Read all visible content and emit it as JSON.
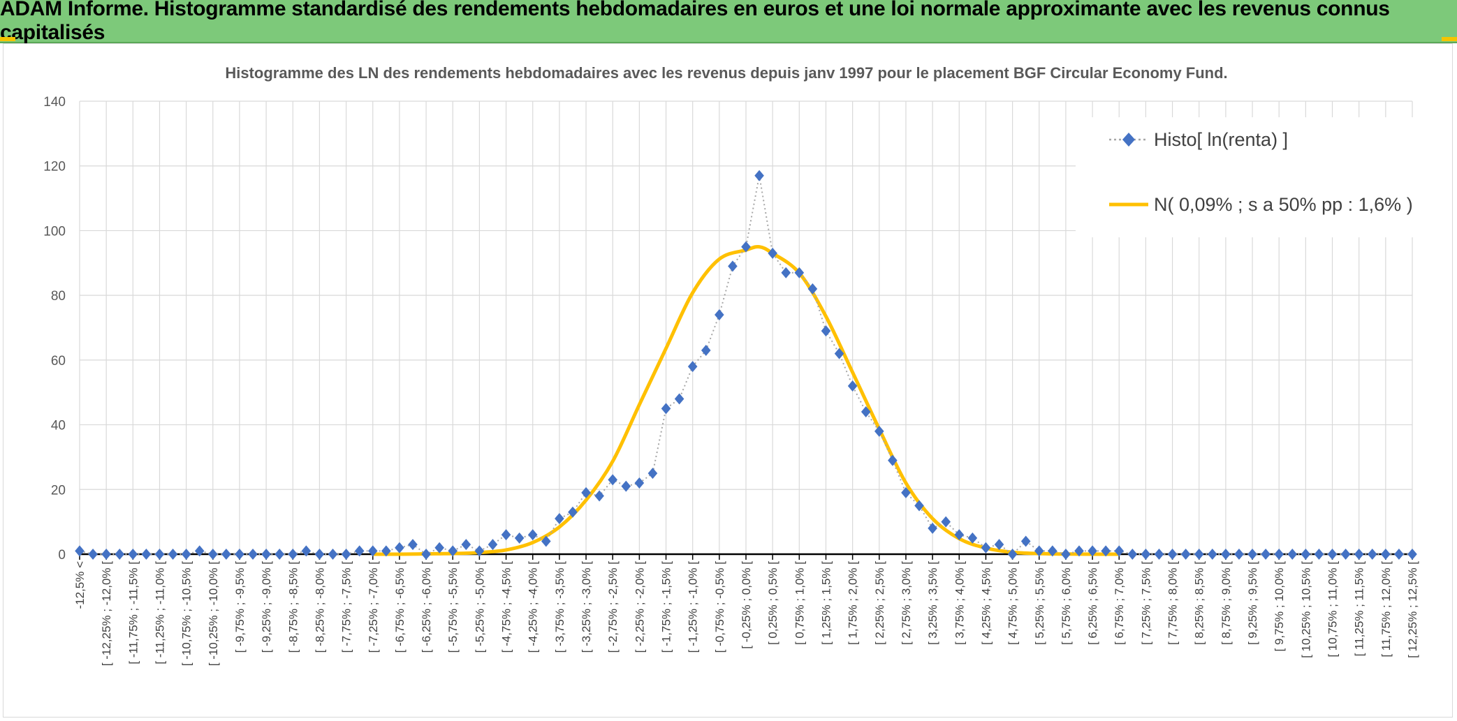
{
  "header": {
    "title": "ADAM Informe. Histogramme standardisé des rendements hebdomadaires en euros et une loi normale approximante avec les revenus connus capitalisés"
  },
  "colors": {
    "banner": "#7dc97a",
    "accent_yellow": "#f5c400",
    "series_histo": "#4472c4",
    "series_normal": "#ffc000",
    "grid": "#d9d9d9",
    "axis": "#000000"
  },
  "chart_data": {
    "type": "line",
    "title": "Histogramme des LN des rendements hebdomadaires avec les revenus depuis janv 1997 pour le placement BGF Circular Economy Fund.",
    "xlabel": "",
    "ylabel": "",
    "ylim": [
      0,
      140
    ],
    "yticks": [
      "0",
      "20",
      "40",
      "60",
      "80",
      "100",
      "120",
      "140"
    ],
    "grid": true,
    "legend_position": "top-right",
    "categories": [
      "-12,5% <",
      "[ -12,25% ; -12,0% [",
      "[ -11,75% ; -11,5% [",
      "[ -11,25% ; -11,0% [",
      "[ -10,75% ; -10,5% [",
      "[ -10,25% ; -10,0% [",
      "[ -9,75% ; -9,5% [",
      "[ -9,25% ; -9,0% [",
      "[ -8,75% ; -8,5% [",
      "[ -8,25% ; -8,0% [",
      "[ -7,75% ; -7,5% [",
      "[ -7,25% ; -7,0% [",
      "[ -6,75% ; -6,5% [",
      "[ -6,25% ; -6,0% [",
      "[ -5,75% ; -5,5% [",
      "[ -5,25% ; -5,0% [",
      "[ -4,75% ; -4,5% [",
      "[ -4,25% ; -4,0% [",
      "[ -3,75% ; -3,5% [",
      "[ -3,25% ; -3,0% [",
      "[ -2,75% ; -2,5% [",
      "[ -2,25% ; -2,0% [",
      "[ -1,75% ; -1,5% [",
      "[ -1,25% ; -1,0% [",
      "[ -0,75% ; -0,5% [",
      "[ -0,25% ; 0,0% [",
      "[ 0,25% ; 0,5% [",
      "[ 0,75% ; 1,0% [",
      "[ 1,25% ; 1,5% [",
      "[ 1,75% ; 2,0% [",
      "[ 2,25% ; 2,5% [",
      "[ 2,75% ; 3,0% [",
      "[ 3,25% ; 3,5% [",
      "[ 3,75% ; 4,0% [",
      "[ 4,25% ; 4,5% [",
      "[ 4,75% ; 5,0% [",
      "[ 5,25% ; 5,5% [",
      "[ 5,75% ; 6,0% [",
      "[ 6,25% ; 6,5% [",
      "[ 6,75% ; 7,0% [",
      "[ 7,25% ; 7,5% [",
      "[ 7,75% ; 8,0% [",
      "[ 8,25% ; 8,5% [",
      "[ 8,75% ; 9,0% [",
      "[ 9,25% ; 9,5% [",
      "[ 9,75% ; 10,0% [",
      "[ 10,25% ; 10,5% [",
      "[ 10,75% ; 11,0% [",
      "[ 11,25% ; 11,5% [",
      "[ 11,75% ; 12,0% [",
      "[ 12,25% ; 12,5% ["
    ],
    "series": [
      {
        "name": "Histo[ ln(renta) ]",
        "style": "dotted-diamond",
        "color": "#4472c4",
        "x": [
          -12.5,
          -12.25,
          -12.0,
          -11.75,
          -11.5,
          -11.25,
          -11.0,
          -10.75,
          -10.5,
          -10.25,
          -10.0,
          -9.75,
          -9.5,
          -9.25,
          -9.0,
          -8.75,
          -8.5,
          -8.25,
          -8.0,
          -7.75,
          -7.5,
          -7.25,
          -7.0,
          -6.75,
          -6.5,
          -6.25,
          -6.0,
          -5.75,
          -5.5,
          -5.25,
          -5.0,
          -4.75,
          -4.5,
          -4.25,
          -4.0,
          -3.75,
          -3.5,
          -3.25,
          -3.0,
          -2.75,
          -2.5,
          -2.25,
          -2.0,
          -1.75,
          -1.5,
          -1.25,
          -1.0,
          -0.75,
          -0.5,
          -0.25,
          0.0,
          0.25,
          0.5,
          0.75,
          1.0,
          1.25,
          1.5,
          1.75,
          2.0,
          2.25,
          2.5,
          2.75,
          3.0,
          3.25,
          3.5,
          3.75,
          4.0,
          4.25,
          4.5,
          4.75,
          5.0,
          5.25,
          5.5,
          5.75,
          6.0,
          6.25,
          6.5,
          6.75,
          7.0,
          7.25,
          7.5,
          7.75,
          8.0,
          8.25,
          8.5,
          8.75,
          9.0,
          9.25,
          9.5,
          9.75,
          10.0,
          10.25,
          10.5,
          10.75,
          11.0,
          11.25,
          11.5,
          11.75,
          12.0,
          12.25,
          12.5
        ],
        "values": [
          1,
          0,
          0,
          0,
          0,
          0,
          0,
          0,
          0,
          1,
          0,
          0,
          0,
          0,
          0,
          0,
          0,
          1,
          0,
          0,
          0,
          1,
          1,
          1,
          2,
          3,
          0,
          2,
          1,
          3,
          1,
          3,
          6,
          5,
          6,
          4,
          11,
          13,
          19,
          18,
          23,
          21,
          22,
          25,
          45,
          48,
          58,
          63,
          74,
          89,
          95,
          117,
          93,
          87,
          87,
          82,
          69,
          62,
          52,
          44,
          38,
          29,
          19,
          15,
          8,
          10,
          6,
          5,
          2,
          3,
          0,
          4,
          1,
          1,
          0,
          1,
          1,
          1,
          1,
          0,
          0,
          0,
          0,
          0,
          0,
          0,
          0,
          0,
          0,
          0,
          0,
          0,
          0,
          0,
          0,
          0,
          0,
          0,
          0,
          0,
          0
        ]
      },
      {
        "name": "N( 0,09% ; s a 50% pp : 1,6% )",
        "style": "solid-line",
        "color": "#ffc000",
        "mean": 0.09,
        "sd": 1.6,
        "peak": 95,
        "x": [
          -7.0,
          -6.5,
          -6.0,
          -5.5,
          -5.0,
          -4.5,
          -4.0,
          -3.5,
          -3.0,
          -2.5,
          -2.0,
          -1.5,
          -1.0,
          -0.5,
          0.0,
          0.25,
          0.5,
          1.0,
          1.5,
          2.0,
          2.5,
          3.0,
          3.5,
          4.0,
          4.5,
          5.0,
          5.5,
          6.0,
          6.5,
          7.0
        ],
        "values": [
          0.0,
          0.0,
          0.1,
          0.2,
          0.5,
          1.3,
          3.6,
          8.4,
          16.7,
          28.7,
          46.2,
          63.6,
          80.8,
          91.2,
          94.0,
          95.0,
          93.0,
          86.9,
          73.5,
          56.2,
          38.7,
          22.0,
          11.0,
          4.8,
          1.9,
          0.6,
          0.2,
          0.05,
          0.0,
          0.0
        ]
      }
    ]
  }
}
